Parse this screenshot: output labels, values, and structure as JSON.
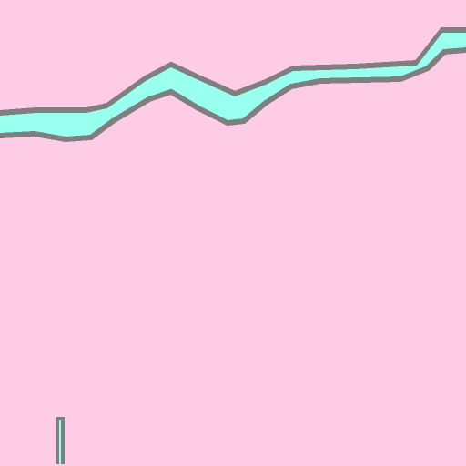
{
  "game": {
    "colors": {
      "background": "#ffcce6",
      "terrain_fill": "#99ffee",
      "terrain_outline": "#7f7f7f",
      "paddle_fill": "#99ffee",
      "paddle_outline": "#7f7f7f"
    },
    "icons": {
      "terrain": "cyan-ribbon-terrain",
      "player": "vertical-paddle"
    }
  }
}
